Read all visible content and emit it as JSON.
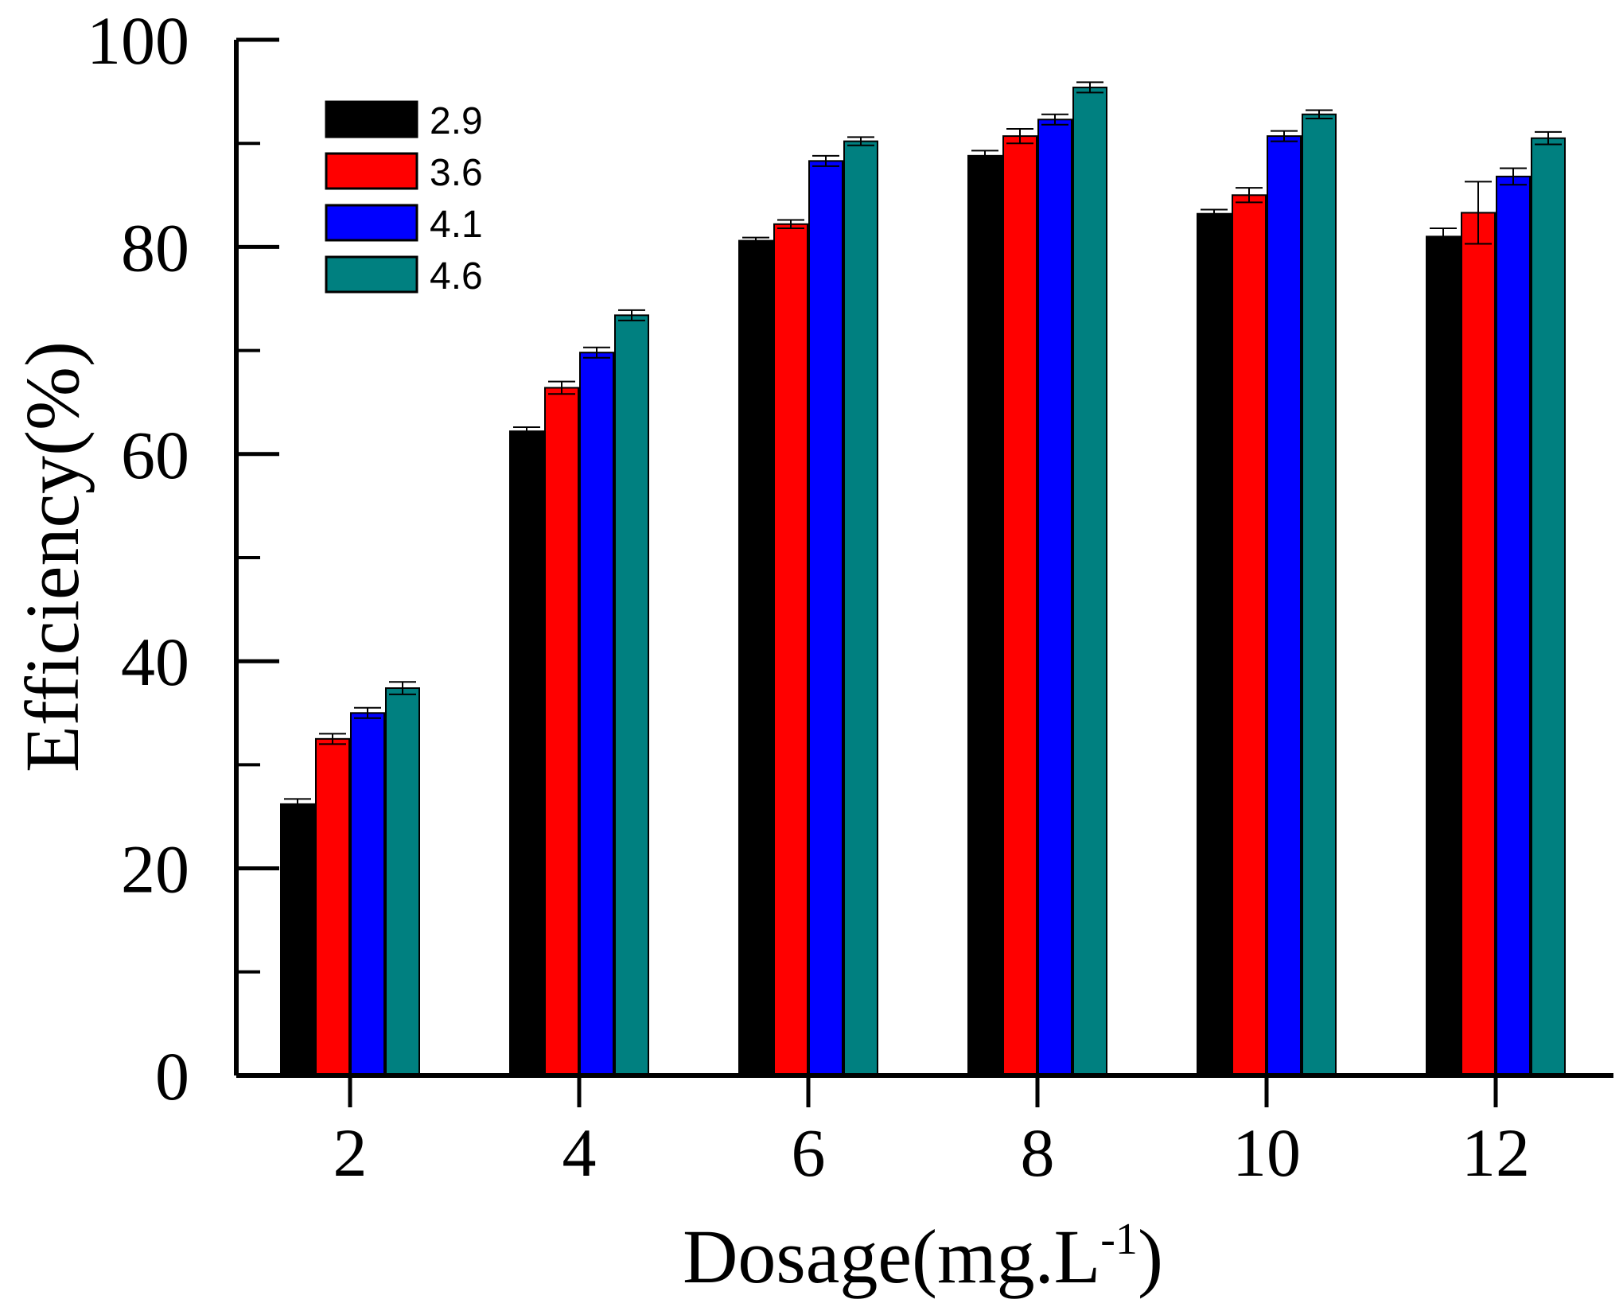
{
  "chart_data": {
    "type": "bar",
    "title": "",
    "xlabel": "Dosage(mg.L",
    "xlabel_superscript": "-1",
    "xlabel_suffix": ")",
    "ylabel": "Efficiency(%)",
    "ylim": [
      0,
      100
    ],
    "y_major_ticks": [
      0,
      20,
      40,
      60,
      80,
      100
    ],
    "y_minor_ticks": [
      10,
      30,
      50,
      70,
      90
    ],
    "categories": [
      "2",
      "4",
      "6",
      "8",
      "10",
      "12"
    ],
    "legend_position": "top-left",
    "grid": false,
    "series": [
      {
        "name": "2.9",
        "color": "#000000",
        "values": [
          26.2,
          62.2,
          80.6,
          88.8,
          83.2,
          81.0
        ],
        "errors": [
          0.5,
          0.4,
          0.3,
          0.5,
          0.4,
          0.8
        ]
      },
      {
        "name": "3.6",
        "color": "#ff0000",
        "values": [
          32.5,
          66.4,
          82.2,
          90.7,
          85.0,
          83.3
        ],
        "errors": [
          0.5,
          0.6,
          0.4,
          0.7,
          0.7,
          3.0
        ]
      },
      {
        "name": "4.1",
        "color": "#0000ff",
        "values": [
          35.0,
          69.8,
          88.3,
          92.3,
          90.7,
          86.8
        ],
        "errors": [
          0.5,
          0.5,
          0.5,
          0.5,
          0.5,
          0.8
        ]
      },
      {
        "name": "4.6",
        "color": "#008080",
        "values": [
          37.4,
          73.4,
          90.2,
          95.4,
          92.8,
          90.5
        ],
        "errors": [
          0.6,
          0.5,
          0.4,
          0.5,
          0.4,
          0.6
        ]
      }
    ]
  }
}
